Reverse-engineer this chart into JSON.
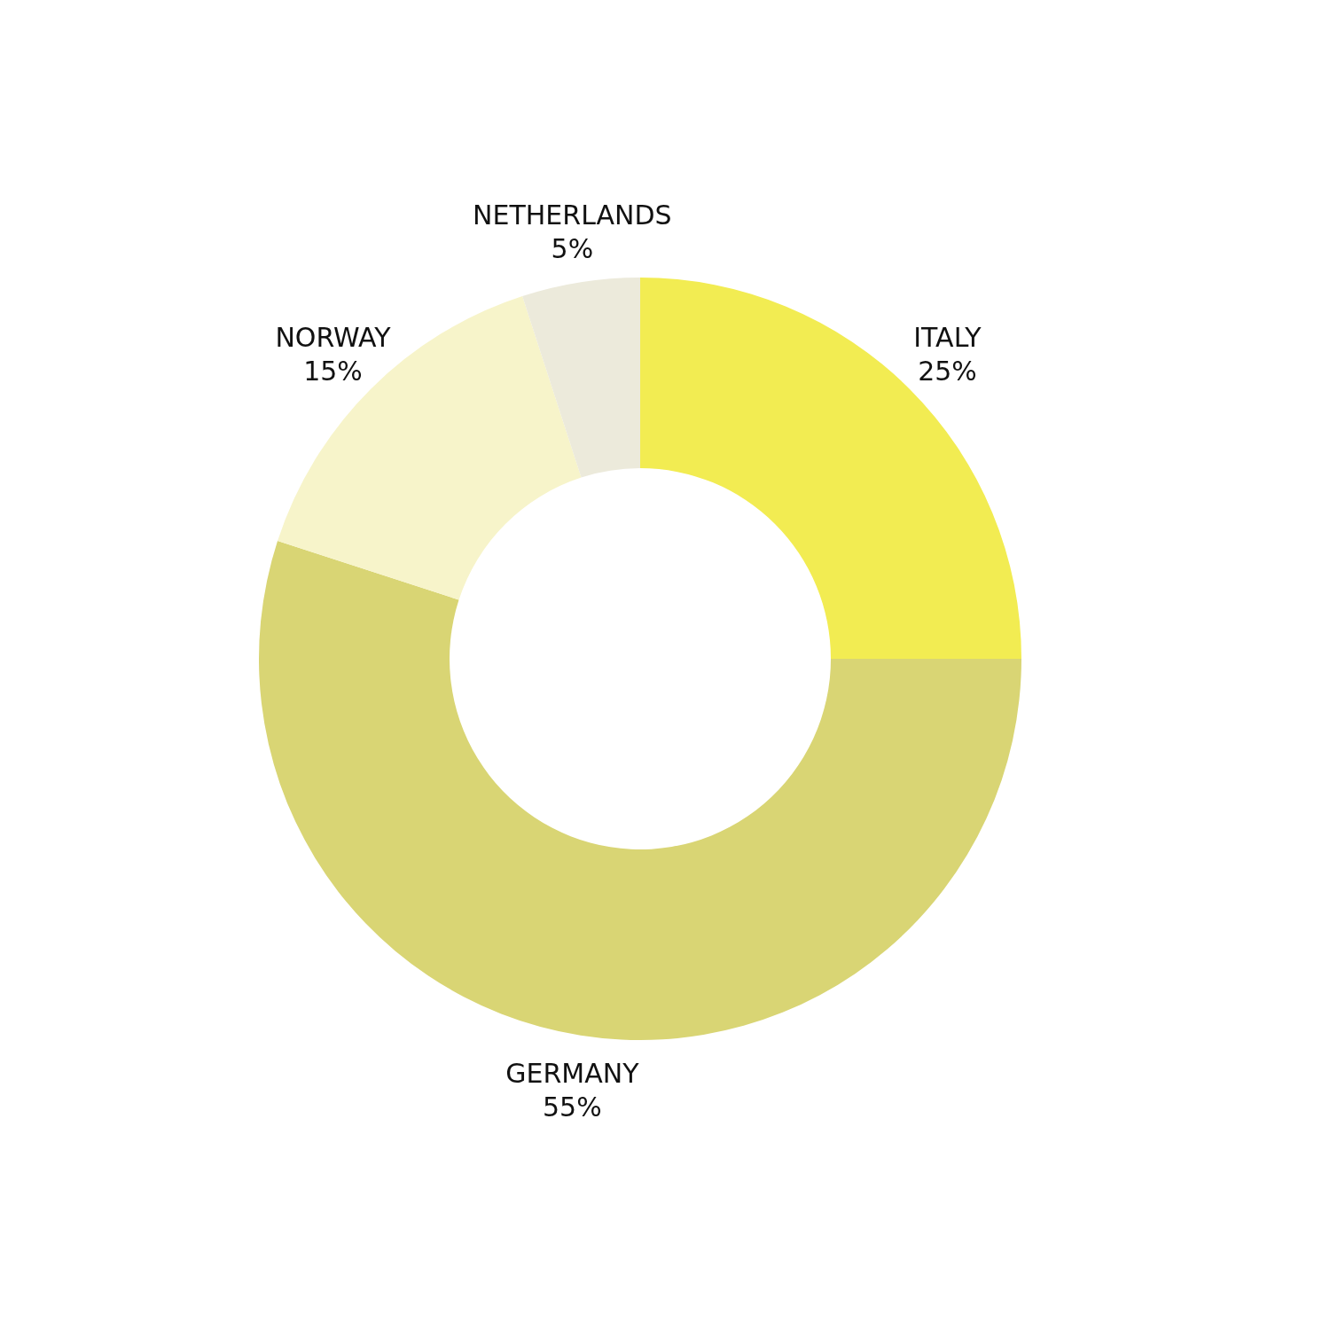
{
  "chart_data": {
    "type": "donut",
    "categories": [
      "ITALY",
      "GERMANY",
      "NORWAY",
      "NETHERLANDS"
    ],
    "values": [
      25,
      55,
      15,
      5
    ],
    "colors": [
      "#f2ec52",
      "#d9d574",
      "#f7f4ca",
      "#eceadb"
    ],
    "value_labels": [
      "25%",
      "55%",
      "15%",
      "5%"
    ]
  }
}
